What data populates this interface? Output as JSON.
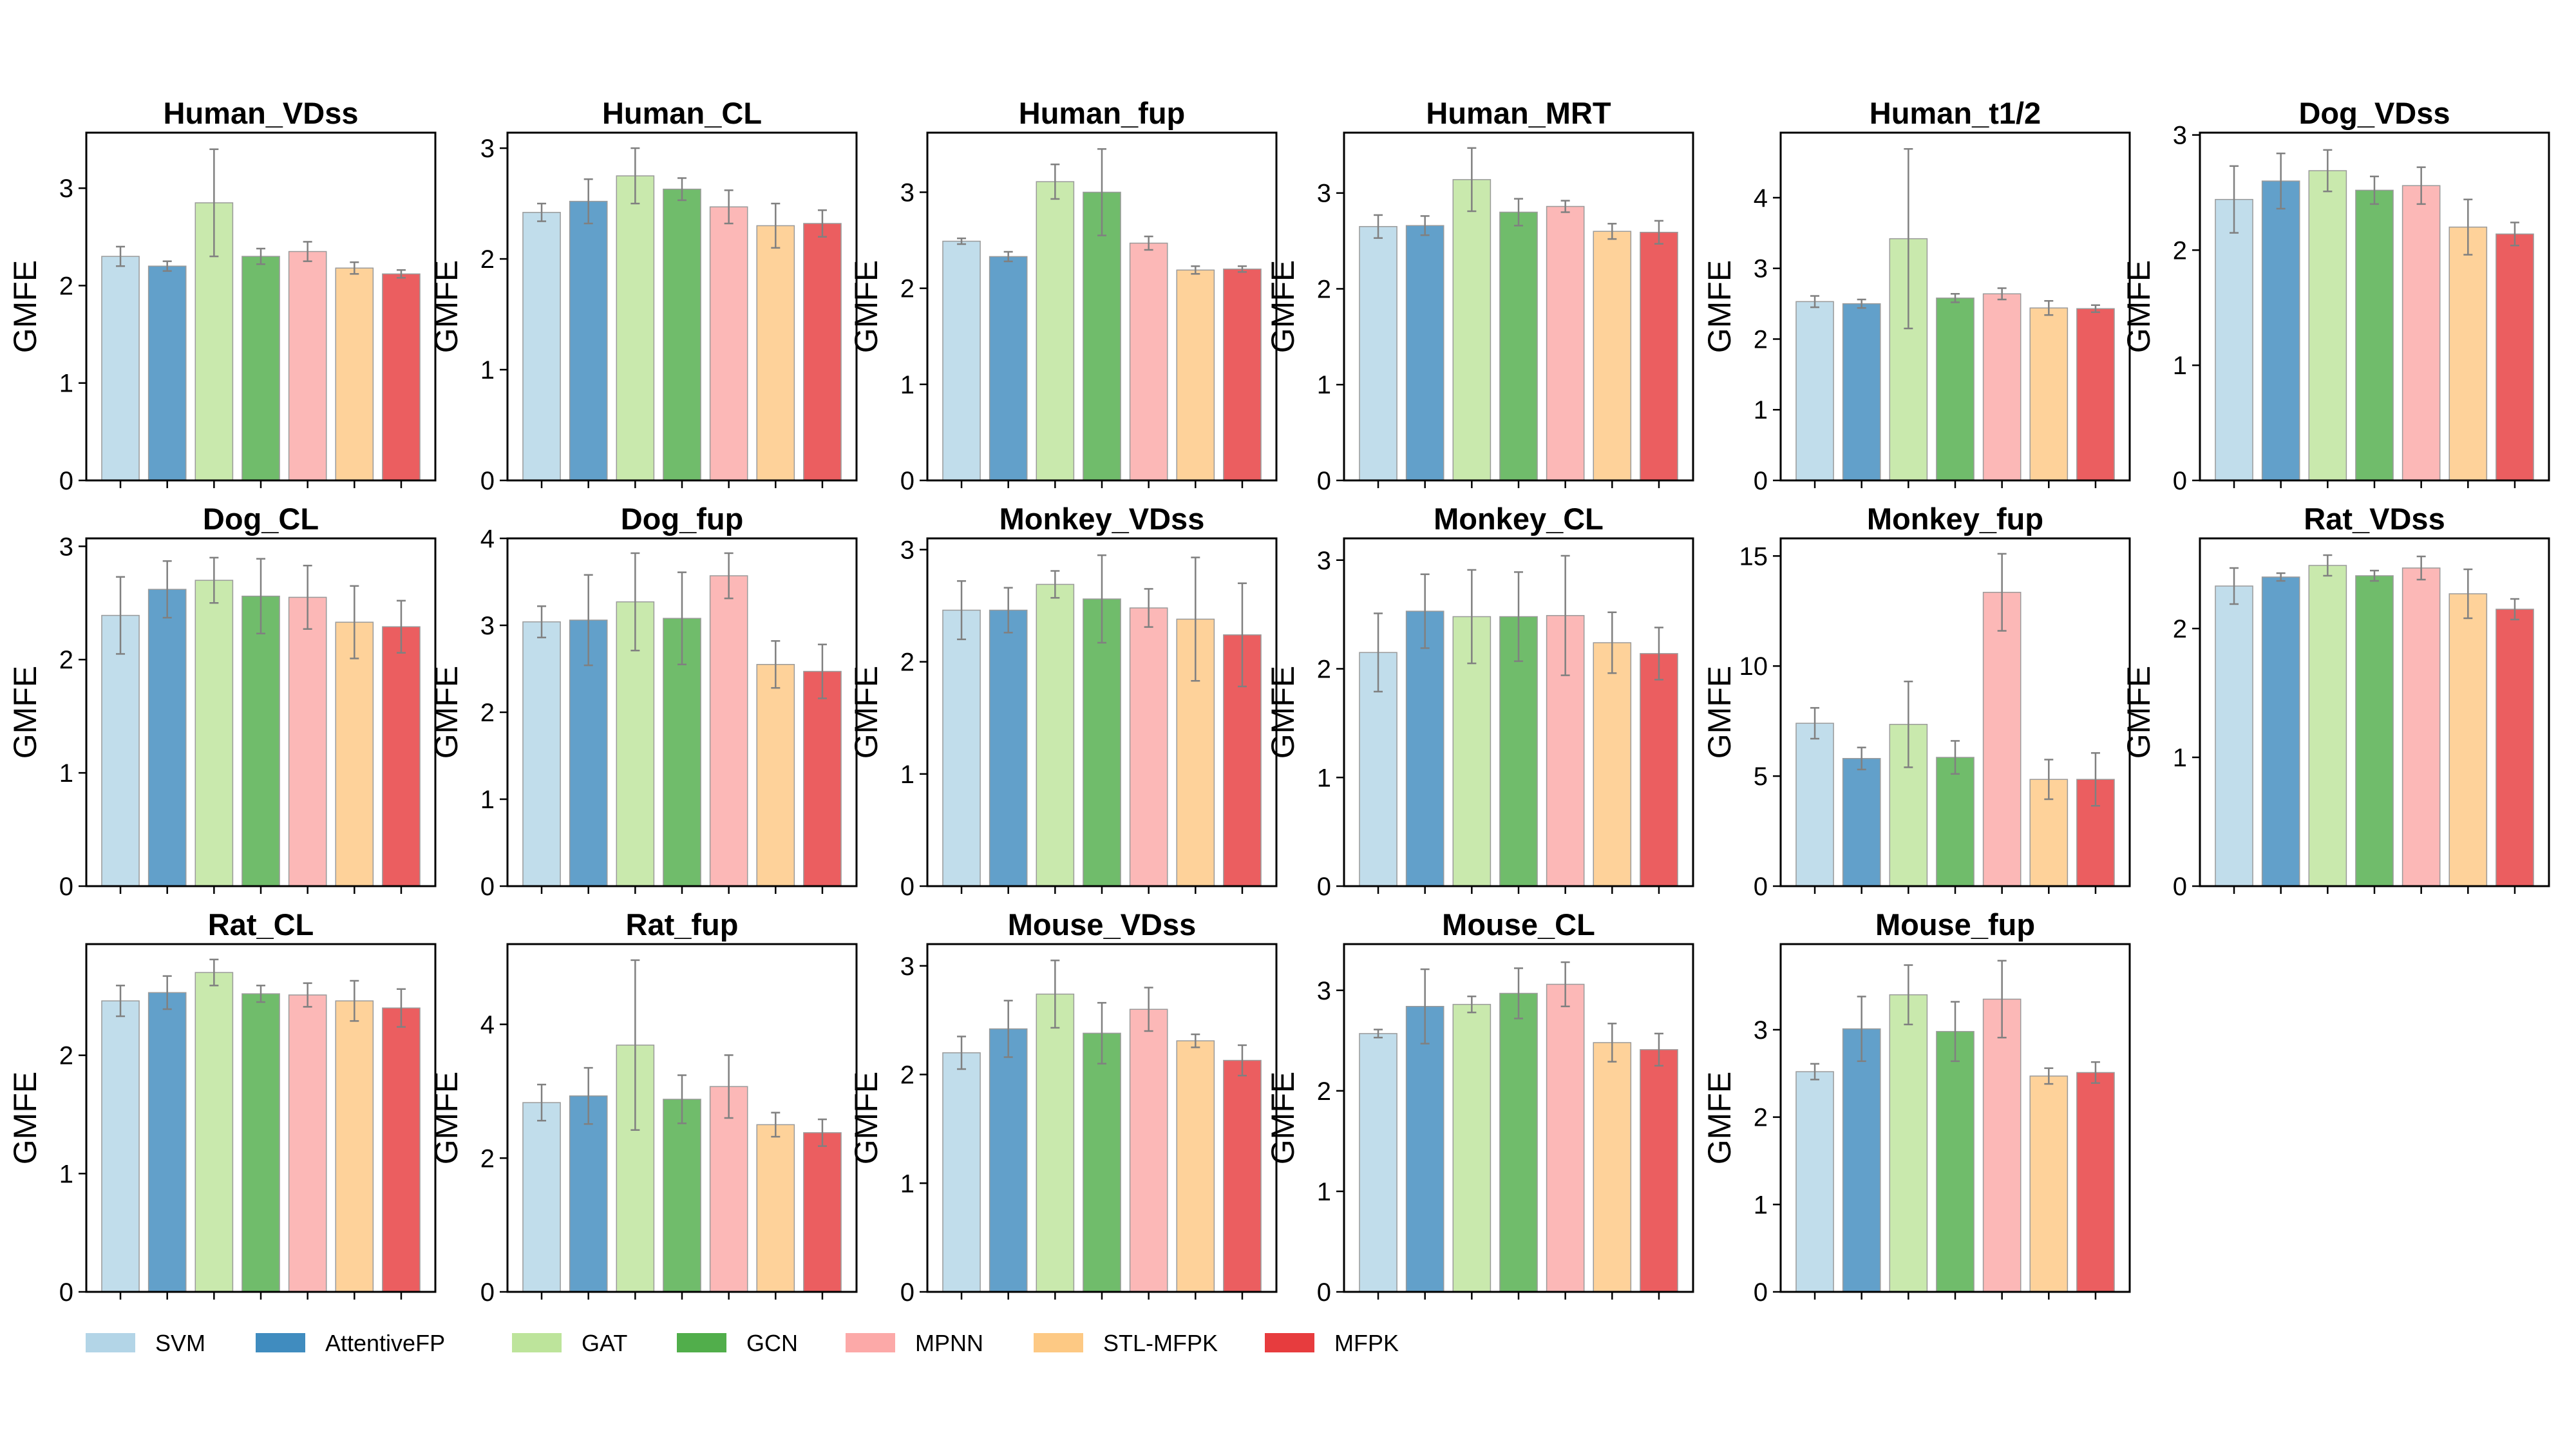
{
  "legend": {
    "placement": "bottom",
    "items": [
      {
        "label": "SVM",
        "color": "#a6cee3"
      },
      {
        "label": "AttentiveFP",
        "color": "#1f78b4"
      },
      {
        "label": "GAT",
        "color": "#b2df8a"
      },
      {
        "label": "GCN",
        "color": "#33a02c"
      },
      {
        "label": "MPNN",
        "color": "#fb9a99"
      },
      {
        "label": "STL-MFPK",
        "color": "#fdbf6f"
      },
      {
        "label": "MFPK",
        "color": "#e31a1c"
      }
    ]
  },
  "chart_data": [
    {
      "type": "bar",
      "title": "Human_VDss",
      "ylabel": "GMFE",
      "ylim": [
        0,
        3.57
      ],
      "yticks": [
        "0",
        "1",
        "2",
        "3"
      ],
      "values": [
        2.3,
        2.2,
        2.85,
        2.3,
        2.35,
        2.18,
        2.12
      ],
      "errors": [
        0.1,
        0.05,
        0.55,
        0.08,
        0.1,
        0.06,
        0.04
      ]
    },
    {
      "type": "bar",
      "title": "Human_CL",
      "ylabel": "GMFE",
      "ylim": [
        0,
        3.14
      ],
      "yticks": [
        "0",
        "1",
        "2",
        "3"
      ],
      "values": [
        2.42,
        2.52,
        2.75,
        2.63,
        2.47,
        2.3,
        2.32
      ],
      "errors": [
        0.08,
        0.2,
        0.25,
        0.1,
        0.15,
        0.2,
        0.12
      ]
    },
    {
      "type": "bar",
      "title": "Human_fup",
      "ylabel": "GMFE",
      "ylim": [
        0,
        3.62
      ],
      "yticks": [
        "0",
        "1",
        "2",
        "3"
      ],
      "values": [
        2.49,
        2.33,
        3.11,
        3.0,
        2.47,
        2.19,
        2.2
      ],
      "errors": [
        0.03,
        0.05,
        0.18,
        0.45,
        0.07,
        0.04,
        0.03
      ]
    },
    {
      "type": "bar",
      "title": "Human_MRT",
      "ylabel": "GMFE",
      "ylim": [
        0,
        3.63
      ],
      "yticks": [
        "0",
        "1",
        "2",
        "3"
      ],
      "values": [
        2.65,
        2.66,
        3.14,
        2.8,
        2.86,
        2.6,
        2.59
      ],
      "errors": [
        0.12,
        0.1,
        0.33,
        0.14,
        0.06,
        0.08,
        0.12
      ]
    },
    {
      "type": "bar",
      "title": "Human_t1/2",
      "ylabel": "GMFE",
      "ylim": [
        0,
        4.92
      ],
      "yticks": [
        "0",
        "1",
        "2",
        "3",
        "4"
      ],
      "values": [
        2.53,
        2.5,
        3.42,
        2.58,
        2.64,
        2.44,
        2.43
      ],
      "errors": [
        0.08,
        0.06,
        1.27,
        0.06,
        0.08,
        0.1,
        0.05
      ]
    },
    {
      "type": "bar",
      "title": "Dog_VDss",
      "ylabel": "GMFE",
      "ylim": [
        0,
        3.02
      ],
      "yticks": [
        "0",
        "1",
        "2",
        "3"
      ],
      "values": [
        2.44,
        2.6,
        2.69,
        2.52,
        2.56,
        2.2,
        2.14
      ],
      "errors": [
        0.29,
        0.24,
        0.18,
        0.12,
        0.16,
        0.24,
        0.1
      ]
    },
    {
      "type": "bar",
      "title": "Dog_CL",
      "ylabel": "GMFE",
      "ylim": [
        0,
        3.07
      ],
      "yticks": [
        "0",
        "1",
        "2",
        "3"
      ],
      "values": [
        2.39,
        2.62,
        2.7,
        2.56,
        2.55,
        2.33,
        2.29
      ],
      "errors": [
        0.34,
        0.25,
        0.2,
        0.33,
        0.28,
        0.32,
        0.23
      ]
    },
    {
      "type": "bar",
      "title": "Dog_fup",
      "ylabel": "GMFE",
      "ylim": [
        0,
        4.0
      ],
      "yticks": [
        "0",
        "1",
        "2",
        "3",
        "4"
      ],
      "values": [
        3.04,
        3.06,
        3.27,
        3.08,
        3.57,
        2.55,
        2.47
      ],
      "errors": [
        0.18,
        0.52,
        0.56,
        0.53,
        0.26,
        0.27,
        0.31
      ]
    },
    {
      "type": "bar",
      "title": "Monkey_VDss",
      "ylabel": "GMFE",
      "ylim": [
        0,
        3.1
      ],
      "yticks": [
        "0",
        "1",
        "2",
        "3"
      ],
      "values": [
        2.46,
        2.46,
        2.69,
        2.56,
        2.48,
        2.38,
        2.24
      ],
      "errors": [
        0.26,
        0.2,
        0.12,
        0.39,
        0.17,
        0.55,
        0.46
      ]
    },
    {
      "type": "bar",
      "title": "Monkey_CL",
      "ylabel": "GMFE",
      "ylim": [
        0,
        3.2
      ],
      "yticks": [
        "0",
        "1",
        "2",
        "3"
      ],
      "values": [
        2.15,
        2.53,
        2.48,
        2.48,
        2.49,
        2.24,
        2.14
      ],
      "errors": [
        0.36,
        0.34,
        0.43,
        0.41,
        0.55,
        0.28,
        0.24
      ]
    },
    {
      "type": "bar",
      "title": "Monkey_fup",
      "ylabel": "GMFE",
      "ylim": [
        0,
        15.8
      ],
      "yticks": [
        "0",
        "5",
        "10",
        "15"
      ],
      "values": [
        7.4,
        5.8,
        7.35,
        5.85,
        13.35,
        4.85,
        4.85
      ],
      "errors": [
        0.7,
        0.5,
        1.95,
        0.75,
        1.75,
        0.9,
        1.2
      ]
    },
    {
      "type": "bar",
      "title": "Rat_VDss",
      "ylabel": "GMFE",
      "ylim": [
        0,
        2.7
      ],
      "yticks": [
        "0",
        "1",
        "2"
      ],
      "values": [
        2.33,
        2.4,
        2.49,
        2.41,
        2.47,
        2.27,
        2.15
      ],
      "errors": [
        0.14,
        0.03,
        0.08,
        0.04,
        0.09,
        0.19,
        0.08
      ]
    },
    {
      "type": "bar",
      "title": "Rat_CL",
      "ylabel": "GMFE",
      "ylim": [
        0,
        2.94
      ],
      "yticks": [
        "0",
        "1",
        "2"
      ],
      "values": [
        2.46,
        2.53,
        2.7,
        2.52,
        2.51,
        2.46,
        2.4
      ],
      "errors": [
        0.13,
        0.14,
        0.11,
        0.07,
        0.1,
        0.17,
        0.16
      ]
    },
    {
      "type": "bar",
      "title": "Rat_fup",
      "ylabel": "GMFE",
      "ylim": [
        0,
        5.2
      ],
      "yticks": [
        "0",
        "2",
        "4"
      ],
      "values": [
        2.83,
        2.93,
        3.69,
        2.88,
        3.07,
        2.5,
        2.38
      ],
      "errors": [
        0.27,
        0.42,
        1.27,
        0.36,
        0.47,
        0.18,
        0.2
      ]
    },
    {
      "type": "bar",
      "title": "Mouse_VDss",
      "ylabel": "GMFE",
      "ylim": [
        0,
        3.2
      ],
      "yticks": [
        "0",
        "1",
        "2",
        "3"
      ],
      "values": [
        2.2,
        2.42,
        2.74,
        2.38,
        2.6,
        2.31,
        2.13
      ],
      "errors": [
        0.15,
        0.26,
        0.31,
        0.28,
        0.2,
        0.06,
        0.14
      ]
    },
    {
      "type": "bar",
      "title": "Mouse_CL",
      "ylabel": "GMFE",
      "ylim": [
        0,
        3.46
      ],
      "yticks": [
        "0",
        "1",
        "2",
        "3"
      ],
      "values": [
        2.57,
        2.84,
        2.86,
        2.97,
        3.06,
        2.48,
        2.41
      ],
      "errors": [
        0.04,
        0.37,
        0.08,
        0.25,
        0.22,
        0.19,
        0.16
      ]
    },
    {
      "type": "bar",
      "title": "Mouse_fup",
      "ylabel": "GMFE",
      "ylim": [
        0,
        3.98
      ],
      "yticks": [
        "0",
        "1",
        "2",
        "3"
      ],
      "values": [
        2.52,
        3.01,
        3.4,
        2.98,
        3.35,
        2.47,
        2.51
      ],
      "errors": [
        0.09,
        0.37,
        0.34,
        0.34,
        0.44,
        0.09,
        0.12
      ]
    }
  ]
}
